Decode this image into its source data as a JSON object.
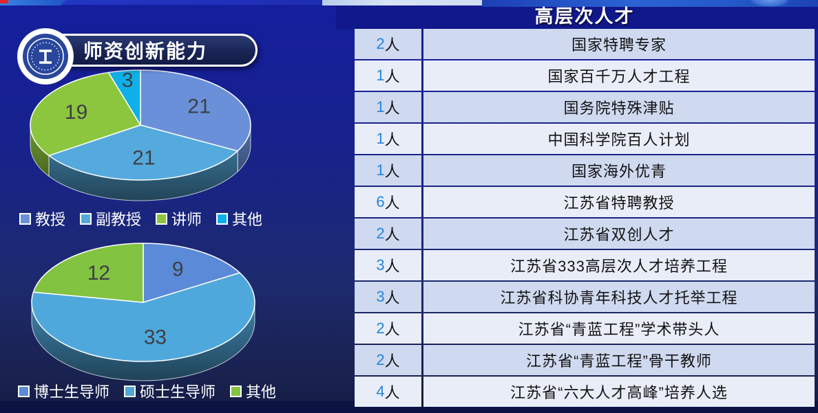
{
  "theme": {
    "panel_header_bg": "#11188c",
    "row_odd": "#cfd9f0",
    "row_even": "#e9edf8",
    "count_number": "#2585dc",
    "row_text": "#121212",
    "pill_border": "#ffffff",
    "accent_red": "#e4232b"
  },
  "left_panel": {
    "title": "师资创新能力",
    "logo_icon": "university-seal-icon"
  },
  "chart_data": [
    {
      "type": "pie",
      "style": "3d",
      "legend_position": "bottom",
      "labels": "values",
      "series": [
        {
          "name": "教授",
          "value": 21,
          "color": "#6a90da"
        },
        {
          "name": "副教授",
          "value": 21,
          "color": "#55aadd"
        },
        {
          "name": "讲师",
          "value": 19,
          "color": "#8cc63e"
        },
        {
          "name": "其他",
          "value": 3,
          "color": "#0fb0ea"
        }
      ]
    },
    {
      "type": "pie",
      "style": "3d",
      "legend_position": "bottom",
      "labels": "values",
      "series": [
        {
          "name": "博士生导师",
          "value": 9,
          "color": "#5b8ad8"
        },
        {
          "name": "硕士生导师",
          "value": 33,
          "color": "#4fa8dc"
        },
        {
          "name": "其他",
          "value": 12,
          "color": "#82c342"
        }
      ]
    }
  ],
  "talent_table": {
    "title": "高层次人才",
    "unit_suffix": "人",
    "rows": [
      {
        "count": "2",
        "name": "国家特聘专家"
      },
      {
        "count": "1",
        "name": "国家百千万人才工程"
      },
      {
        "count": "1",
        "name": "国务院特殊津贴"
      },
      {
        "count": "1",
        "name": "中国科学院百人计划"
      },
      {
        "count": "1",
        "name": "国家海外优青"
      },
      {
        "count": "6",
        "name": "江苏省特聘教授"
      },
      {
        "count": "2",
        "name": "江苏省双创人才"
      },
      {
        "count": "3",
        "name": "江苏省333高层次人才培养工程"
      },
      {
        "count": "3",
        "name": "江苏省科协青年科技人才托举工程"
      },
      {
        "count": "2",
        "name": "江苏省“青蓝工程”学术带头人"
      },
      {
        "count": "2",
        "name": "江苏省“青蓝工程”骨干教师"
      },
      {
        "count": "4",
        "name": "江苏省“六大人才高峰”培养人选"
      }
    ]
  }
}
